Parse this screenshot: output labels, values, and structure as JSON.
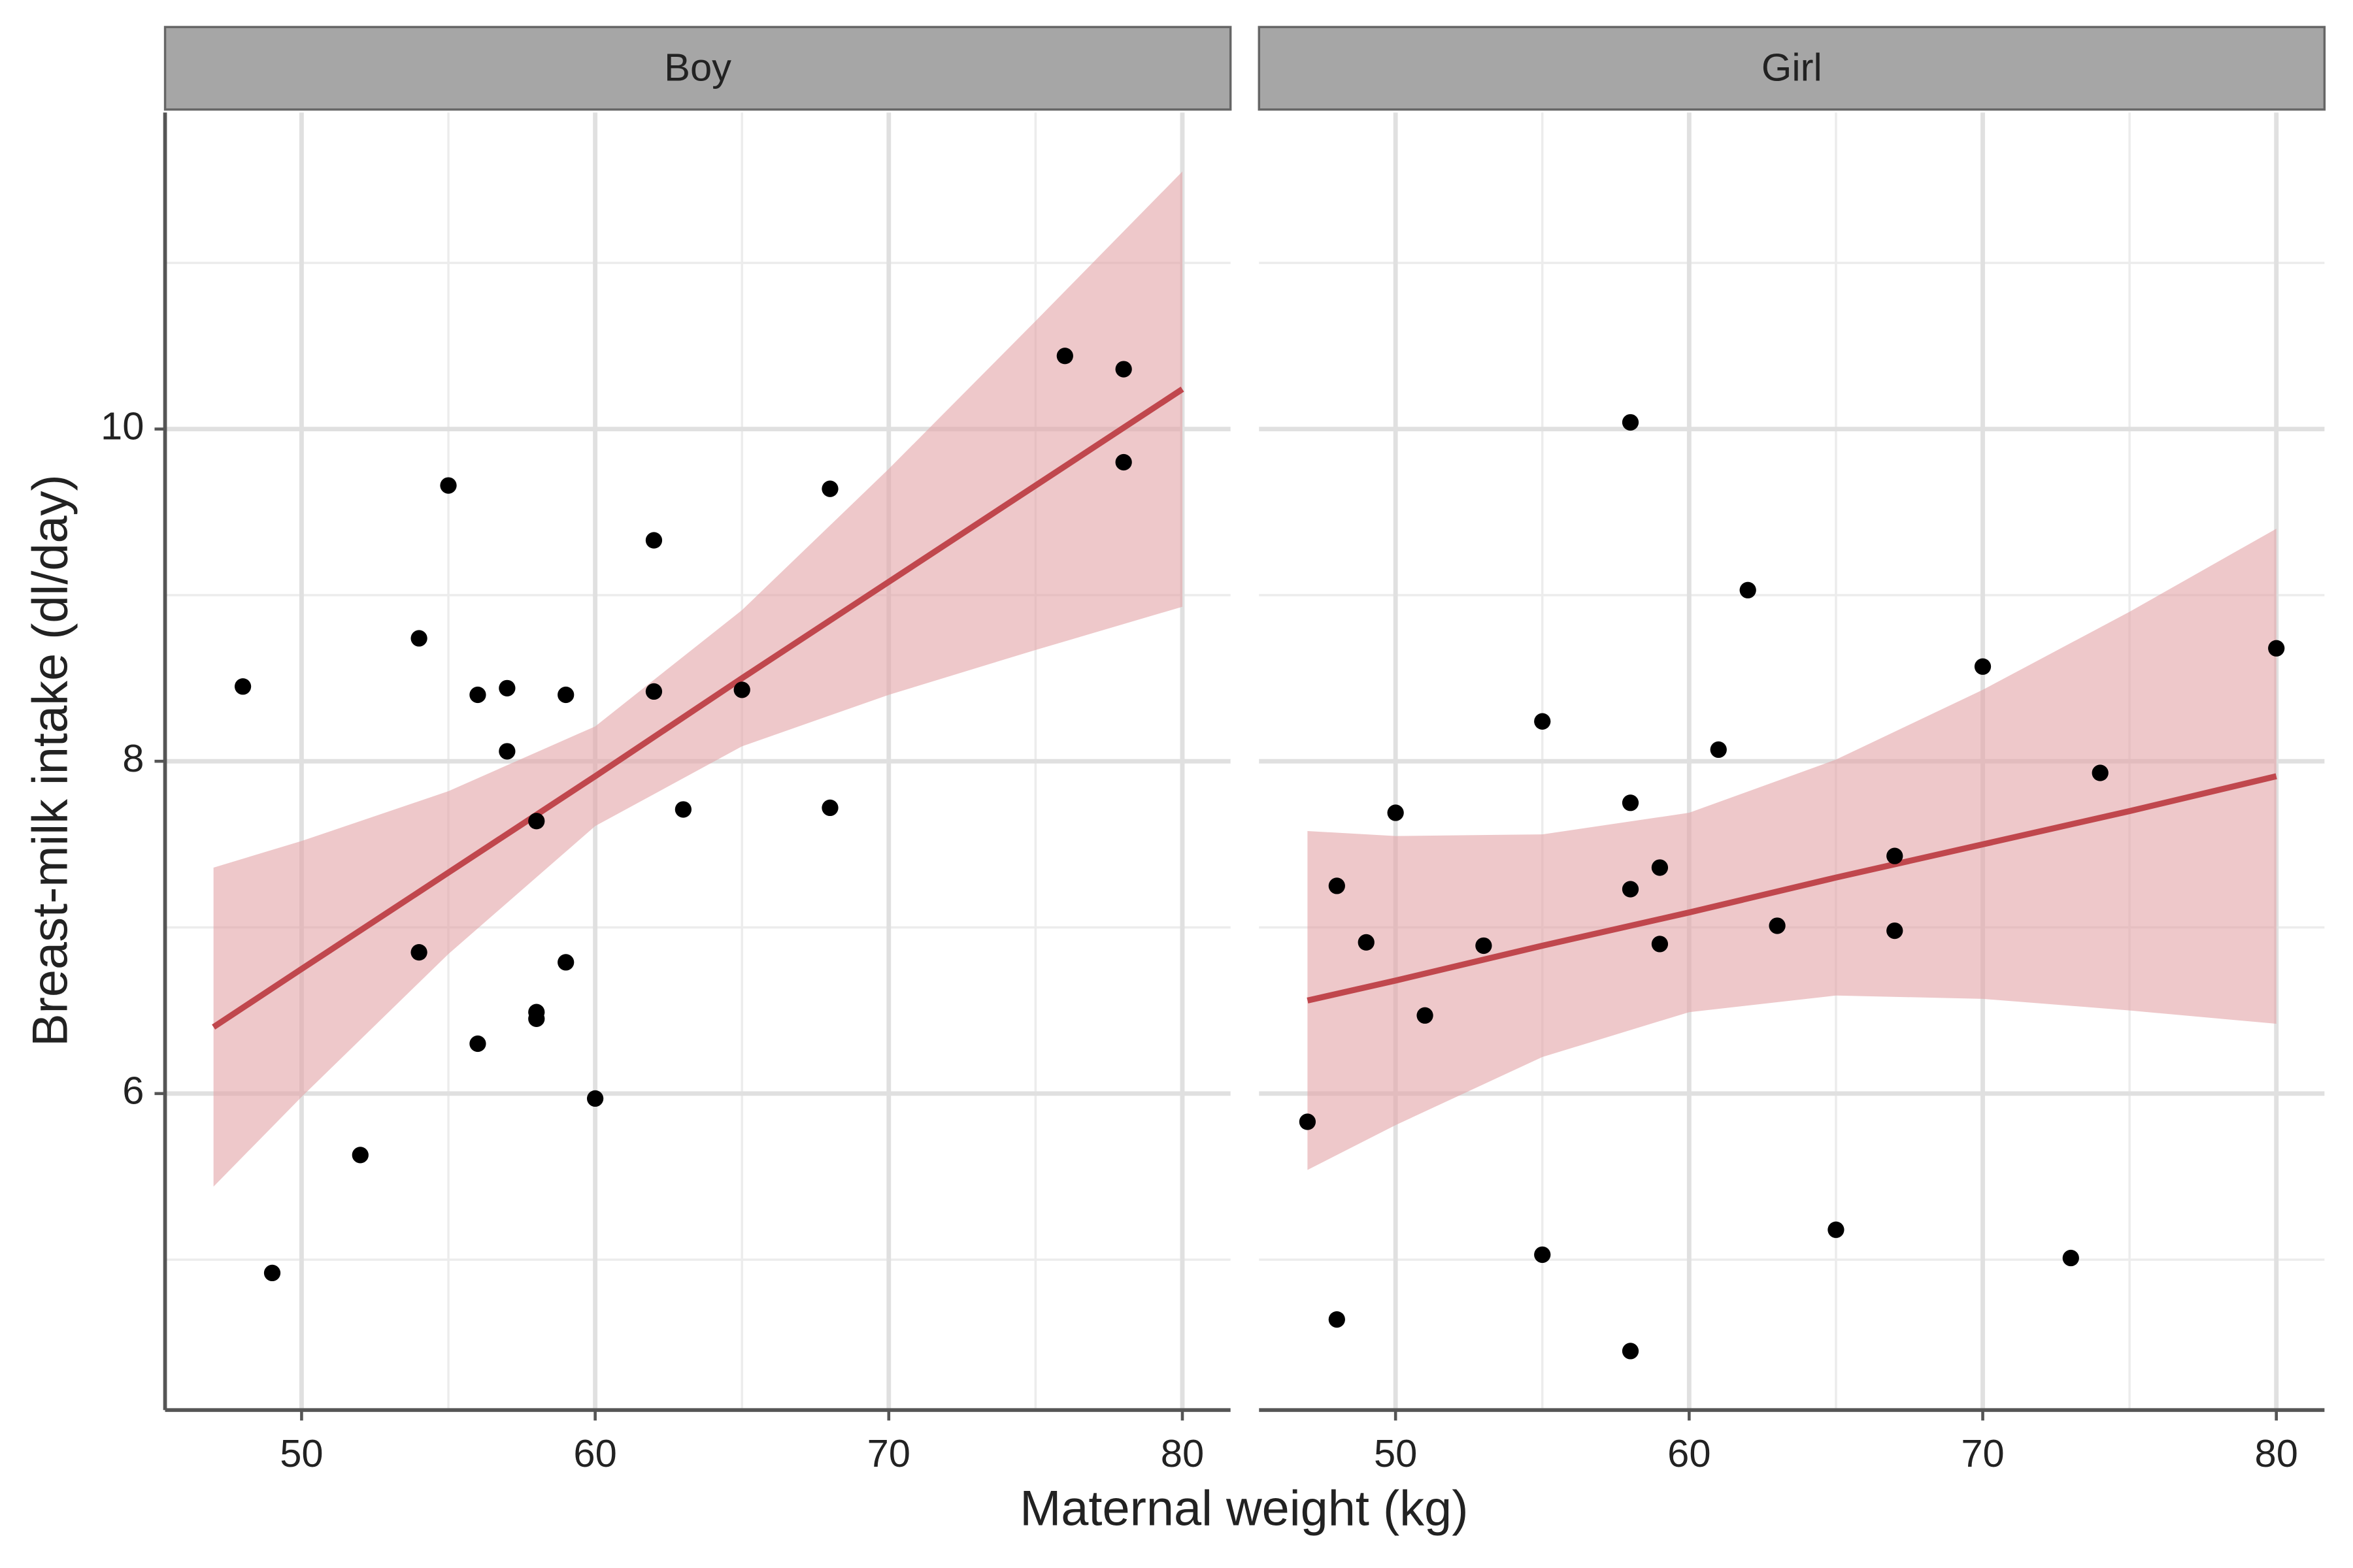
{
  "chart_data": {
    "type": "scatter",
    "x_label": "Maternal weight (kg)",
    "y_label": "Breast-milk intake (dl/day)",
    "xlim": [
      45.35,
      81.64
    ],
    "ylim": [
      4.095,
      11.905
    ],
    "xticks": [
      50,
      60,
      70,
      80
    ],
    "xminor": [
      55,
      65,
      75
    ],
    "yticks": [
      6,
      8,
      10
    ],
    "yminor": [
      5,
      7,
      9,
      11
    ],
    "grid": true,
    "point_color": "#000000",
    "fit_color": "#c0474d",
    "band_color": "#e2a3a7",
    "panels": [
      {
        "title": "Boy",
        "x": [
          48,
          49,
          52,
          54,
          54,
          55,
          56,
          56,
          57,
          57,
          58,
          58,
          58,
          59,
          59,
          60,
          62,
          62,
          63,
          65,
          68,
          68,
          76,
          78,
          78
        ],
        "y": [
          8.45,
          4.92,
          5.63,
          8.74,
          6.85,
          9.66,
          8.4,
          6.3,
          8.44,
          8.06,
          7.64,
          6.49,
          6.45,
          8.4,
          6.79,
          5.97,
          9.33,
          8.42,
          7.71,
          8.43,
          9.64,
          7.72,
          10.44,
          10.36,
          9.8
        ],
        "fit": {
          "x": [
            47,
            50,
            55,
            60,
            65,
            70,
            75,
            80
          ],
          "y": [
            6.4,
            6.75,
            7.33,
            7.91,
            8.5,
            9.08,
            9.66,
            10.24
          ],
          "lower": [
            5.44,
            5.98,
            6.84,
            7.61,
            8.09,
            8.4,
            8.67,
            8.93
          ],
          "upper": [
            7.36,
            7.52,
            7.82,
            8.21,
            8.91,
            9.76,
            10.65,
            11.55
          ]
        }
      },
      {
        "title": "Girl",
        "x": [
          47,
          48,
          48,
          49,
          50,
          51,
          53,
          55,
          55,
          58,
          58,
          58,
          58,
          59,
          59,
          61,
          62,
          63,
          65,
          67,
          67,
          70,
          73,
          74,
          80
        ],
        "y": [
          5.83,
          7.25,
          4.64,
          6.91,
          7.69,
          6.47,
          6.89,
          8.24,
          5.03,
          10.04,
          7.75,
          7.23,
          4.45,
          7.36,
          6.9,
          8.07,
          9.03,
          7.01,
          5.18,
          7.43,
          6.98,
          8.57,
          5.01,
          7.93,
          8.68
        ],
        "fit": {
          "x": [
            47,
            50,
            55,
            60,
            65,
            70,
            75,
            80
          ],
          "y": [
            6.56,
            6.68,
            6.89,
            7.09,
            7.3,
            7.5,
            7.7,
            7.91
          ],
          "lower": [
            5.54,
            5.81,
            6.22,
            6.49,
            6.59,
            6.57,
            6.5,
            6.42
          ],
          "upper": [
            7.58,
            7.55,
            7.56,
            7.69,
            8.01,
            8.43,
            8.9,
            9.4
          ]
        }
      }
    ]
  }
}
